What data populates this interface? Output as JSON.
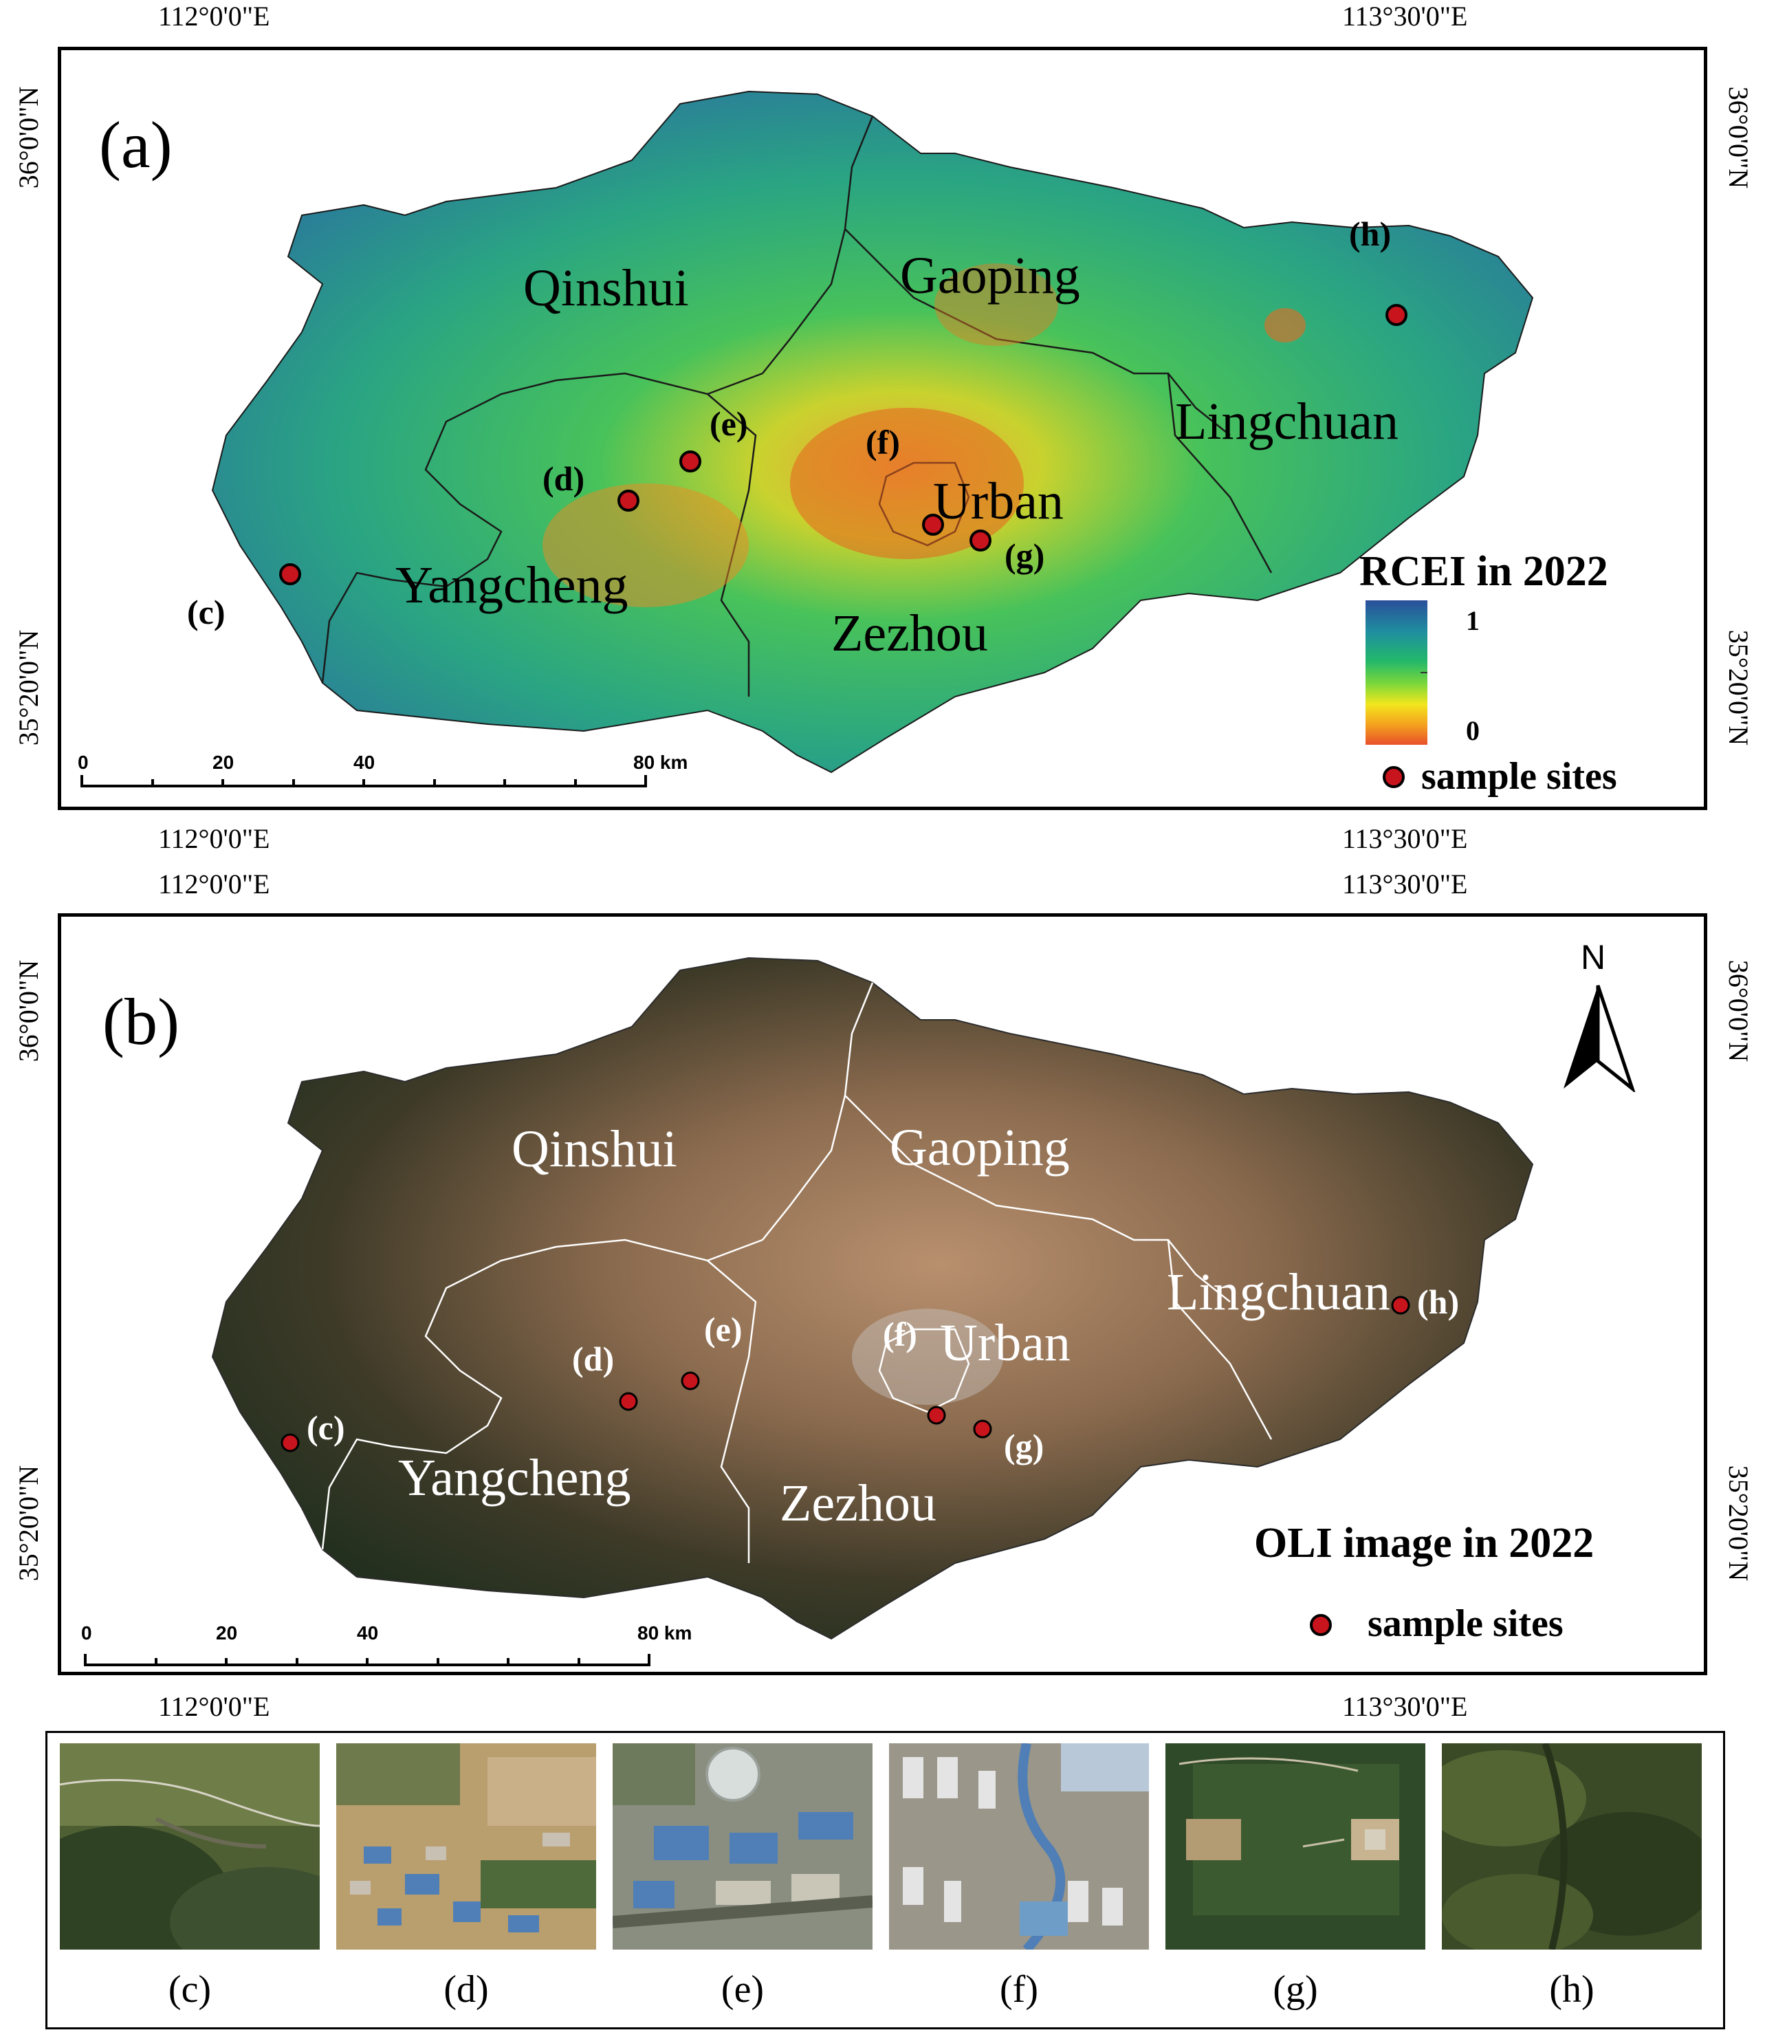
{
  "panel_a": {
    "tag": "(a)",
    "coords": {
      "top_left": "112°0'0\"E",
      "top_right": "113°30'0\"E",
      "bottom_left": "112°0'0\"E",
      "bottom_right": "113°30'0\"E",
      "left_upper": "36°0'0\"N",
      "left_lower": "35°20'0\"N",
      "right_upper": "36°0'0\"N",
      "right_lower": "35°20'0\"N"
    },
    "regions": {
      "qinshui": "Qinshui",
      "gaoping": "Gaoping",
      "lingchuan": "Lingchuan",
      "urban": "Urban",
      "yangcheng": "Yangcheng",
      "zezhou": "Zezhou"
    },
    "sites": {
      "c": "(c)",
      "d": "(d)",
      "e": "(e)",
      "f": "(f)",
      "g": "(g)",
      "h": "(h)"
    },
    "legend": {
      "title": "RCEI in 2022",
      "max": "1",
      "min": "0",
      "sites_label": "sample sites",
      "colors": [
        "#2a4f9a",
        "#1f8fa0",
        "#22b86a",
        "#7dd83a",
        "#f2e61d",
        "#f4a21e",
        "#e8502a"
      ]
    },
    "scale": {
      "ticks": [
        "0",
        "20",
        "40",
        "80 km"
      ]
    }
  },
  "panel_b": {
    "tag": "(b)",
    "coords": {
      "top_left": "112°0'0\"E",
      "top_right": "113°30'0\"E",
      "bottom_left": "112°0'0\"E",
      "bottom_right": "113°30'0\"E",
      "left_upper": "36°0'0\"N",
      "left_lower": "35°20'0\"N",
      "right_upper": "36°0'0\"N",
      "right_lower": "35°20'0\"N"
    },
    "regions": {
      "qinshui": "Qinshui",
      "gaoping": "Gaoping",
      "lingchuan": "Lingchuan",
      "urban": "Urban",
      "yangcheng": "Yangcheng",
      "zezhou": "Zezhou"
    },
    "sites": {
      "c": "(c)",
      "d": "(d)",
      "e": "(e)",
      "f": "(f)",
      "g": "(g)",
      "h": "(h)"
    },
    "north_label": "N",
    "title": "OLI image in 2022",
    "sites_label": "sample sites",
    "scale": {
      "ticks": [
        "0",
        "20",
        "40",
        "80 km"
      ]
    }
  },
  "thumbnails": [
    {
      "label": "(c)",
      "kind": "forest-ridge"
    },
    {
      "label": "(d)",
      "kind": "village"
    },
    {
      "label": "(e)",
      "kind": "industrial"
    },
    {
      "label": "(f)",
      "kind": "urban"
    },
    {
      "label": "(g)",
      "kind": "park"
    },
    {
      "label": "(h)",
      "kind": "forest"
    }
  ],
  "colors": {
    "site_fill": "#c8141c",
    "boundary_a": "#1a1a1a",
    "boundary_b": "#ffffff"
  }
}
